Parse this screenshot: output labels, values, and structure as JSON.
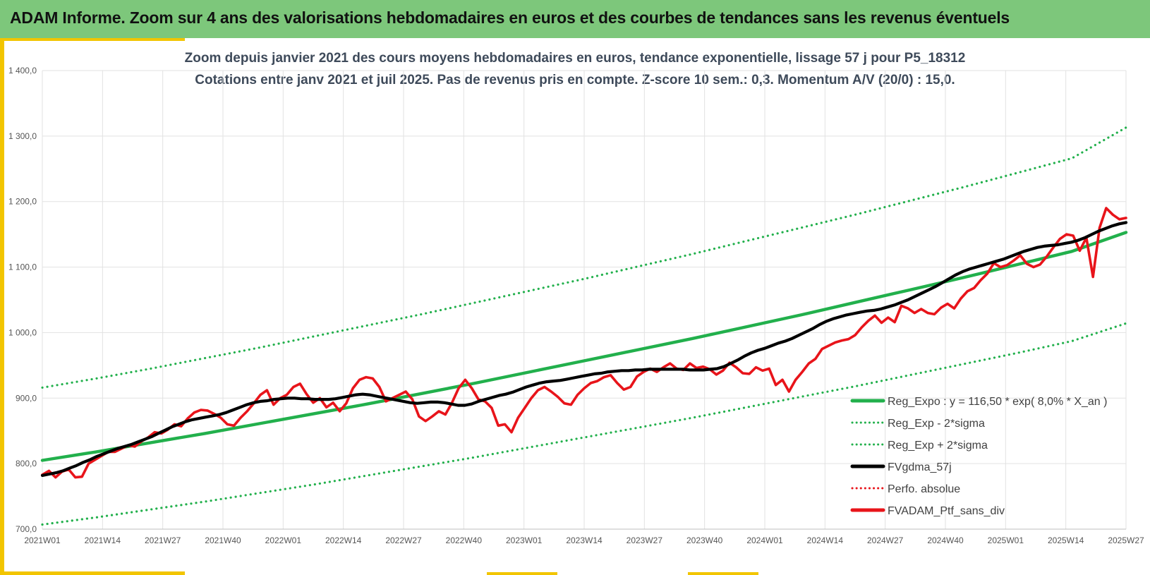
{
  "header": {
    "title": "ADAM Informe. Zoom sur 4 ans des valorisations hebdomadaires en euros et des courbes de tendances sans les revenus éventuels"
  },
  "colors": {
    "banner": "#7dc77b",
    "accent": "#f2c500",
    "trend_green": "#22b04c",
    "smoothed_black": "#000000",
    "portfolio_red": "#e8141a",
    "title_text": "#3e4a5a"
  },
  "chart_data": {
    "type": "line",
    "title": "Zoom depuis janvier 2021 des cours moyens hebdomadaires  en euros, tendance exponentielle, lissage 57 j pour P5_18312",
    "subtitle": "Cotations entre janv 2021 et juil 2025. Pas de revenus pris en compte. Z-score 10 sem.: 0,3. Momentum A/V (20/0) : 15,0.",
    "xlabel": "",
    "ylabel": "",
    "ylim": [
      700,
      1400
    ],
    "yticks": [
      "700,0",
      "800,0",
      "900,0",
      "1 000,0",
      "1 100,0",
      "1 200,0",
      "1 300,0",
      "1 400,0"
    ],
    "xticks": [
      "2021W01",
      "2021W14",
      "2021W27",
      "2021W40",
      "2022W01",
      "2022W14",
      "2022W27",
      "2022W40",
      "2023W01",
      "2023W14",
      "2023W27",
      "2023W40",
      "2024W01",
      "2024W14",
      "2024W27",
      "2024W40",
      "2025W01",
      "2025W14",
      "2025W27"
    ],
    "grid": true,
    "legend_position": "bottom-right",
    "series": [
      {
        "name": "Reg_Expo : y = 116,50 * exp( 8,0% *  X_an )",
        "style": "solid",
        "color": "#22b04c",
        "values": [
          805,
          818,
          832,
          846,
          861,
          876,
          891,
          907,
          923,
          940,
          957,
          974,
          991,
          1009,
          1027,
          1046,
          1065,
          1084,
          1104,
          1124,
          1153
        ]
      },
      {
        "name": "Reg_Exp - 2*sigma",
        "style": "dotted",
        "color": "#22b04c",
        "values": [
          707,
          718,
          730,
          742,
          755,
          768,
          782,
          796,
          810,
          825,
          840,
          855,
          870,
          886,
          902,
          918,
          935,
          952,
          969,
          987,
          1014
        ]
      },
      {
        "name": "Reg_Exp + 2*sigma",
        "style": "dotted",
        "color": "#22b04c",
        "values": [
          916,
          930,
          945,
          961,
          977,
          994,
          1011,
          1028,
          1046,
          1064,
          1082,
          1101,
          1120,
          1140,
          1160,
          1180,
          1201,
          1222,
          1244,
          1266,
          1313
        ]
      },
      {
        "name": "FVgdma_57j",
        "style": "solid",
        "color": "#000000",
        "values": [
          782,
          784,
          786,
          789,
          793,
          797,
          802,
          806,
          811,
          815,
          819,
          823,
          826,
          829,
          833,
          837,
          841,
          846,
          851,
          856,
          860,
          864,
          867,
          869,
          871,
          873,
          875,
          878,
          882,
          886,
          890,
          893,
          895,
          896,
          898,
          899,
          900,
          900,
          899,
          899,
          898,
          898,
          898,
          899,
          901,
          903,
          905,
          906,
          905,
          903,
          901,
          899,
          897,
          895,
          893,
          892,
          893,
          894,
          894,
          893,
          891,
          889,
          889,
          891,
          895,
          898,
          901,
          904,
          906,
          909,
          913,
          917,
          920,
          923,
          925,
          926,
          927,
          929,
          931,
          933,
          935,
          937,
          938,
          940,
          941,
          942,
          942,
          943,
          943,
          944,
          944,
          944,
          944,
          944,
          944,
          943,
          943,
          943,
          944,
          945,
          948,
          953,
          958,
          964,
          969,
          973,
          976,
          980,
          984,
          987,
          991,
          996,
          1001,
          1006,
          1012,
          1017,
          1021,
          1024,
          1027,
          1029,
          1031,
          1033,
          1034,
          1036,
          1039,
          1042,
          1046,
          1050,
          1055,
          1060,
          1065,
          1070,
          1076,
          1082,
          1088,
          1093,
          1097,
          1100,
          1103,
          1106,
          1109,
          1112,
          1116,
          1120,
          1124,
          1127,
          1130,
          1132,
          1133,
          1134,
          1136,
          1138,
          1141,
          1145,
          1150,
          1155,
          1159,
          1163,
          1166,
          1168
        ]
      },
      {
        "name": "Perfo. absolue",
        "style": "dotted",
        "color": "#e8141a",
        "values": []
      },
      {
        "name": "FVADAM_Ptf_sans_div",
        "style": "solid",
        "color": "#e8141a",
        "values": [
          783,
          789,
          779,
          788,
          791,
          779,
          780,
          800,
          806,
          812,
          818,
          818,
          823,
          828,
          826,
          834,
          840,
          848,
          846,
          852,
          860,
          857,
          869,
          878,
          882,
          881,
          876,
          870,
          860,
          858,
          870,
          880,
          892,
          905,
          912,
          890,
          900,
          905,
          917,
          922,
          906,
          893,
          900,
          886,
          893,
          880,
          892,
          915,
          928,
          932,
          930,
          917,
          895,
          900,
          905,
          910,
          898,
          872,
          865,
          872,
          880,
          875,
          893,
          915,
          928,
          915,
          898,
          895,
          885,
          858,
          860,
          848,
          870,
          885,
          900,
          912,
          917,
          910,
          902,
          892,
          890,
          905,
          915,
          923,
          926,
          932,
          935,
          923,
          913,
          917,
          933,
          940,
          945,
          940,
          947,
          953,
          945,
          943,
          953,
          946,
          948,
          944,
          936,
          942,
          954,
          947,
          938,
          937,
          947,
          942,
          945,
          920,
          928,
          910,
          928,
          940,
          953,
          960,
          975,
          980,
          985,
          988,
          990,
          996,
          1008,
          1018,
          1026,
          1015,
          1023,
          1016,
          1041,
          1037,
          1030,
          1036,
          1030,
          1028,
          1038,
          1044,
          1037,
          1052,
          1063,
          1068,
          1080,
          1090,
          1106,
          1100,
          1103,
          1110,
          1118,
          1105,
          1100,
          1104,
          1116,
          1130,
          1143,
          1150,
          1148,
          1125,
          1145,
          1085,
          1160,
          1190,
          1180,
          1173,
          1175
        ]
      }
    ]
  }
}
